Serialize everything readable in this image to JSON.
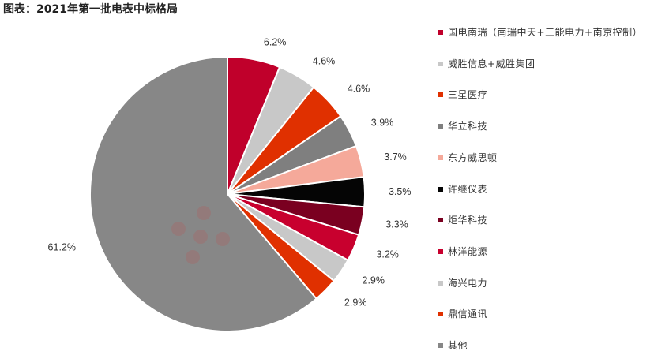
{
  "title": "图表：2021年第一批电表中标格局",
  "chart_data": {
    "type": "pie",
    "title": "图表：2021年第一批电表中标格局",
    "legend_position": "right",
    "series": [
      {
        "name": "国电南瑞（南瑞中天+三能电力+南京控制）",
        "value": 6.2,
        "label": "6.2%",
        "color": "#c0002b"
      },
      {
        "name": "威胜信息+威胜集团",
        "value": 4.6,
        "label": "4.6%",
        "color": "#c8c8c8"
      },
      {
        "name": "三星医疗",
        "value": 4.6,
        "label": "4.6%",
        "color": "#e03000"
      },
      {
        "name": "华立科技",
        "value": 3.9,
        "label": "3.9%",
        "color": "#7f7f7f"
      },
      {
        "name": "东方威思顿",
        "value": 3.7,
        "label": "3.7%",
        "color": "#f5a99a"
      },
      {
        "name": "许继仪表",
        "value": 3.5,
        "label": "3.5%",
        "color": "#050505"
      },
      {
        "name": "炬华科技",
        "value": 3.3,
        "label": "3.3%",
        "color": "#7a0020"
      },
      {
        "name": "林洋能源",
        "value": 3.2,
        "label": "3.2%",
        "color": "#c8002e"
      },
      {
        "name": "海兴电力",
        "value": 2.9,
        "label": "2.9%",
        "color": "#c8c8c8"
      },
      {
        "name": "鼎信通讯",
        "value": 2.9,
        "label": "2.9%",
        "color": "#e03000"
      },
      {
        "name": "其他",
        "value": 61.2,
        "label": "61.2%",
        "color": "#878787"
      }
    ]
  }
}
